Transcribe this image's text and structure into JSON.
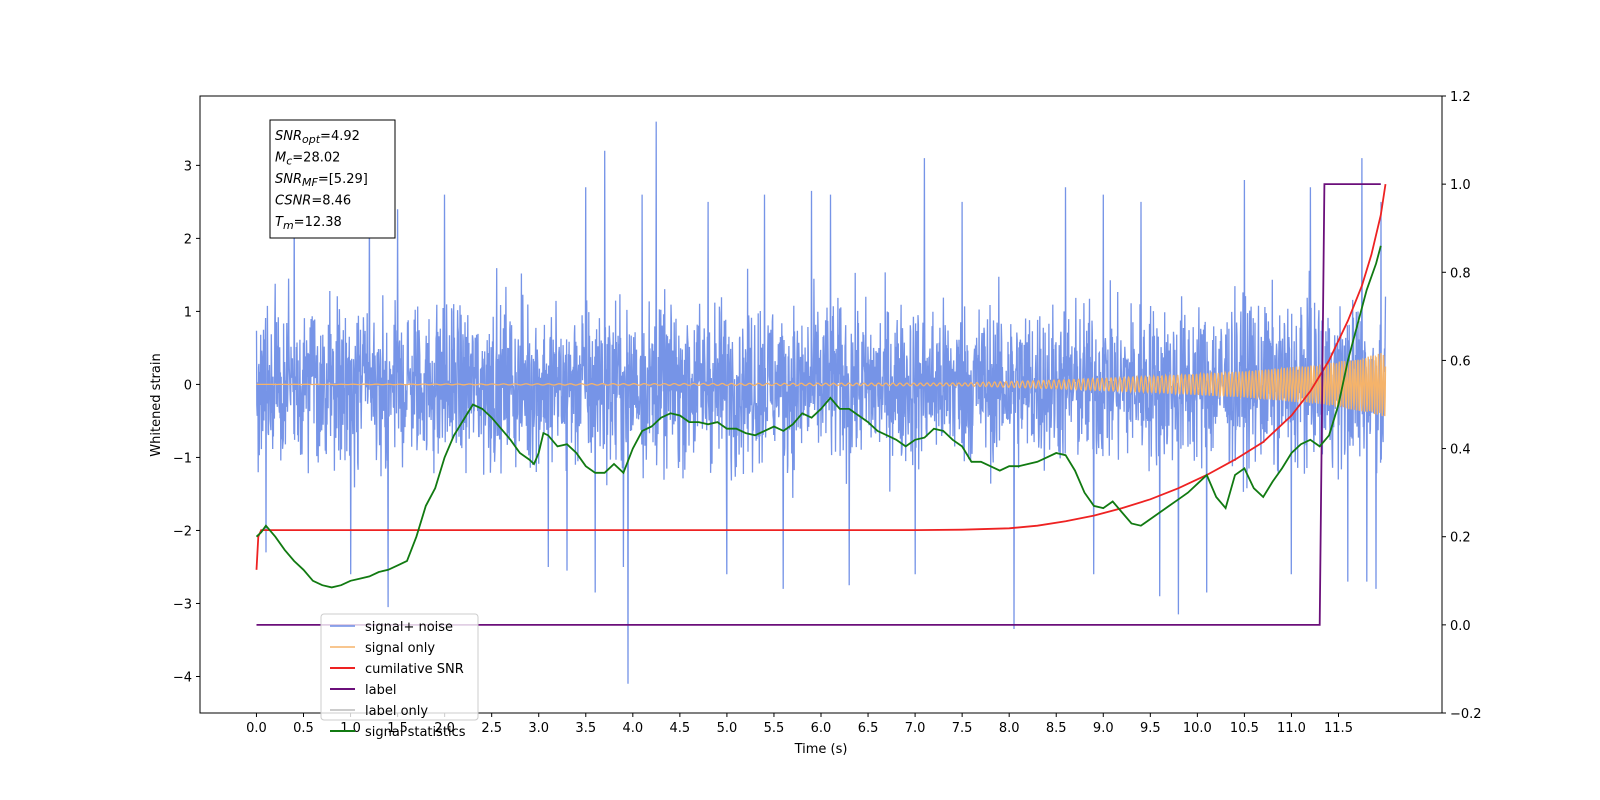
{
  "chart_data": {
    "type": "line",
    "xlabel": "Time (s)",
    "ylabel": "Whitened strain",
    "xlim": [
      -0.6,
      12.6
    ],
    "ylim": [
      -4.5,
      3.95
    ],
    "y2lim": [
      -0.2,
      1.2
    ],
    "x_ticks": [
      0.0,
      0.5,
      1.0,
      1.5,
      2.0,
      2.5,
      3.0,
      3.5,
      4.0,
      4.5,
      5.0,
      5.5,
      6.0,
      6.5,
      7.0,
      7.5,
      8.0,
      8.5,
      9.0,
      9.5,
      10.0,
      10.5,
      11.0,
      11.5
    ],
    "x_tick_labels": [
      "0.0",
      "0.5",
      "1.0",
      "1.5",
      "2.0",
      "2.5",
      "3.0",
      "3.5",
      "4.0",
      "4.5",
      "5.0",
      "5.5",
      "6.0",
      "6.5",
      "7.0",
      "7.5",
      "8.0",
      "8.5",
      "9.0",
      "9.5",
      "10.0",
      "10.5",
      "11.0",
      "11.5"
    ],
    "y_ticks": [
      -4,
      -3,
      -2,
      -1,
      0,
      1,
      2,
      3
    ],
    "y_tick_labels": [
      "−4",
      "−3",
      "−2",
      "−1",
      "0",
      "1",
      "2",
      "3"
    ],
    "y2_ticks": [
      -0.2,
      0.0,
      0.2,
      0.4,
      0.6,
      0.8,
      1.0,
      1.2
    ],
    "y2_tick_labels": [
      "−0.2",
      "0.0",
      "0.2",
      "0.4",
      "0.6",
      "0.8",
      "1.0",
      "1.2"
    ],
    "grid": false,
    "legend_position": "lower-left",
    "annotation": {
      "lines": [
        {
          "base": "SNR",
          "sub": "opt",
          "value": "=4.92"
        },
        {
          "base": "M",
          "sub": "c",
          "value": "=28.02"
        },
        {
          "base": "SNR",
          "sub": "MF",
          "value": "=[5.29]"
        },
        {
          "base": "CSNR",
          "sub": "",
          "value": "=8.46"
        },
        {
          "base": "T",
          "sub": "m",
          "value": "=12.38"
        }
      ]
    },
    "series": [
      {
        "name": "signal+ noise",
        "axis": "left",
        "color": "#6f8ee6",
        "kind": "noise",
        "x_range": [
          0.0,
          12.0
        ],
        "band": [
          -1.6,
          1.6
        ],
        "spikes": [
          [
            0.1,
            -2.3
          ],
          [
            0.4,
            2.9
          ],
          [
            1.0,
            -2.6
          ],
          [
            1.2,
            2.55
          ],
          [
            1.4,
            -3.05
          ],
          [
            1.5,
            2.4
          ],
          [
            2.0,
            2.6
          ],
          [
            3.1,
            -2.5
          ],
          [
            3.3,
            -2.55
          ],
          [
            3.5,
            2.7
          ],
          [
            3.6,
            -2.85
          ],
          [
            3.7,
            3.2
          ],
          [
            3.9,
            -2.5
          ],
          [
            3.95,
            -4.1
          ],
          [
            4.1,
            2.6
          ],
          [
            4.25,
            3.6
          ],
          [
            4.8,
            2.5
          ],
          [
            5.0,
            -2.6
          ],
          [
            5.4,
            2.6
          ],
          [
            5.6,
            -2.8
          ],
          [
            5.9,
            2.65
          ],
          [
            6.1,
            2.6
          ],
          [
            6.3,
            -2.75
          ],
          [
            7.0,
            -2.6
          ],
          [
            7.1,
            3.1
          ],
          [
            7.5,
            2.5
          ],
          [
            8.05,
            -3.35
          ],
          [
            8.6,
            2.7
          ],
          [
            8.9,
            -2.6
          ],
          [
            9.0,
            2.6
          ],
          [
            9.4,
            2.5
          ],
          [
            9.6,
            -2.9
          ],
          [
            9.8,
            -3.15
          ],
          [
            10.1,
            -2.85
          ],
          [
            10.5,
            2.8
          ],
          [
            11.0,
            -2.6
          ],
          [
            11.2,
            2.7
          ],
          [
            11.6,
            -2.7
          ],
          [
            11.75,
            3.1
          ],
          [
            11.8,
            -2.7
          ],
          [
            11.9,
            -2.8
          ],
          [
            11.95,
            2.5
          ]
        ]
      },
      {
        "name": "signal only",
        "axis": "left",
        "color": "#f5b36a",
        "kind": "chirp",
        "x_range": [
          0.0,
          12.0
        ],
        "amplitude": [
          [
            0.0,
            0.0
          ],
          [
            7.5,
            0.02
          ],
          [
            8.5,
            0.06
          ],
          [
            9.5,
            0.11
          ],
          [
            10.5,
            0.18
          ],
          [
            11.3,
            0.27
          ],
          [
            11.8,
            0.38
          ],
          [
            12.0,
            0.45
          ]
        ]
      },
      {
        "name": "cumilative SNR",
        "axis": "right",
        "color": "#ee2222",
        "kind": "line",
        "x": [
          0.0,
          0.02,
          0.05,
          0.1,
          1.0,
          2.0,
          3.0,
          4.0,
          5.0,
          6.0,
          7.0,
          7.5,
          8.0,
          8.3,
          8.6,
          8.9,
          9.2,
          9.5,
          9.8,
          10.1,
          10.4,
          10.7,
          11.0,
          11.2,
          11.4,
          11.6,
          11.75,
          11.85,
          11.95,
          12.0
        ],
        "y": [
          0.125,
          0.2,
          0.215,
          0.215,
          0.215,
          0.215,
          0.215,
          0.215,
          0.215,
          0.215,
          0.215,
          0.216,
          0.219,
          0.225,
          0.235,
          0.248,
          0.265,
          0.285,
          0.31,
          0.34,
          0.375,
          0.415,
          0.475,
          0.53,
          0.6,
          0.69,
          0.77,
          0.84,
          0.93,
          1.0
        ]
      },
      {
        "name": "label",
        "axis": "right",
        "color": "#6b0f7a",
        "kind": "line",
        "x": [
          0.0,
          11.3,
          11.35,
          11.95
        ],
        "y": [
          0.0,
          0.0,
          1.0,
          1.0
        ]
      },
      {
        "name": "label only",
        "axis": "right",
        "color": "#cccccc",
        "kind": "legend-only"
      },
      {
        "name": "signal statistics",
        "axis": "right",
        "color": "#117a11",
        "kind": "line",
        "x": [
          0.0,
          0.05,
          0.1,
          0.2,
          0.3,
          0.4,
          0.5,
          0.6,
          0.7,
          0.8,
          0.9,
          1.0,
          1.1,
          1.2,
          1.3,
          1.4,
          1.5,
          1.6,
          1.7,
          1.8,
          1.9,
          2.0,
          2.1,
          2.2,
          2.3,
          2.4,
          2.5,
          2.6,
          2.7,
          2.8,
          2.9,
          2.95,
          3.0,
          3.05,
          3.1,
          3.2,
          3.3,
          3.4,
          3.5,
          3.6,
          3.7,
          3.8,
          3.9,
          4.0,
          4.1,
          4.2,
          4.3,
          4.4,
          4.5,
          4.6,
          4.7,
          4.8,
          4.9,
          5.0,
          5.1,
          5.2,
          5.3,
          5.4,
          5.5,
          5.6,
          5.7,
          5.8,
          5.9,
          6.0,
          6.1,
          6.2,
          6.3,
          6.4,
          6.5,
          6.6,
          6.7,
          6.8,
          6.9,
          7.0,
          7.1,
          7.2,
          7.3,
          7.4,
          7.5,
          7.6,
          7.7,
          7.8,
          7.9,
          8.0,
          8.1,
          8.2,
          8.3,
          8.4,
          8.5,
          8.6,
          8.7,
          8.8,
          8.9,
          9.0,
          9.1,
          9.2,
          9.3,
          9.4,
          9.5,
          9.6,
          9.7,
          9.8,
          9.9,
          10.0,
          10.1,
          10.2,
          10.3,
          10.4,
          10.5,
          10.6,
          10.7,
          10.8,
          10.9,
          11.0,
          11.1,
          11.2,
          11.3,
          11.4,
          11.5,
          11.6,
          11.7,
          11.8,
          11.9,
          11.95
        ],
        "y": [
          0.2,
          0.21,
          0.225,
          0.2,
          0.17,
          0.145,
          0.125,
          0.1,
          0.09,
          0.085,
          0.09,
          0.1,
          0.105,
          0.11,
          0.12,
          0.125,
          0.135,
          0.145,
          0.2,
          0.27,
          0.31,
          0.38,
          0.43,
          0.465,
          0.5,
          0.49,
          0.47,
          0.445,
          0.42,
          0.39,
          0.375,
          0.365,
          0.39,
          0.435,
          0.43,
          0.405,
          0.41,
          0.39,
          0.36,
          0.345,
          0.345,
          0.365,
          0.345,
          0.4,
          0.44,
          0.45,
          0.47,
          0.48,
          0.475,
          0.46,
          0.46,
          0.455,
          0.46,
          0.445,
          0.445,
          0.435,
          0.43,
          0.44,
          0.45,
          0.44,
          0.455,
          0.48,
          0.47,
          0.49,
          0.515,
          0.49,
          0.49,
          0.475,
          0.46,
          0.44,
          0.43,
          0.42,
          0.405,
          0.42,
          0.425,
          0.445,
          0.44,
          0.42,
          0.405,
          0.37,
          0.37,
          0.36,
          0.35,
          0.36,
          0.36,
          0.365,
          0.37,
          0.38,
          0.39,
          0.385,
          0.35,
          0.3,
          0.27,
          0.265,
          0.28,
          0.255,
          0.23,
          0.225,
          0.24,
          0.255,
          0.27,
          0.285,
          0.3,
          0.32,
          0.34,
          0.29,
          0.265,
          0.34,
          0.355,
          0.31,
          0.29,
          0.325,
          0.355,
          0.39,
          0.41,
          0.42,
          0.405,
          0.43,
          0.5,
          0.6,
          0.68,
          0.76,
          0.82,
          0.86
        ]
      }
    ]
  }
}
